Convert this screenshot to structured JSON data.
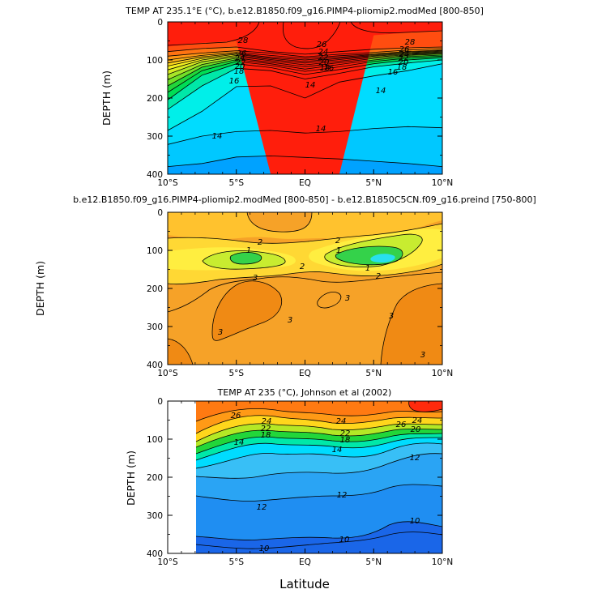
{
  "chart_data": [
    {
      "type": "heatmap",
      "title": "TEMP AT 235.1°E (°C), b.e12.B1850.f09_g16.PIMP4-pliomip2.modMed [800-850]",
      "xlabel": "",
      "ylabel": "DEPTH (m)",
      "xlim": [
        -10,
        10
      ],
      "ylim": [
        400,
        0
      ],
      "x_ticks": [
        "10°S",
        "5°S",
        "EQ",
        "5°N",
        "10°N"
      ],
      "y_ticks": [
        "0",
        "100",
        "200",
        "300",
        "400"
      ],
      "contour_labels": [
        "28",
        "26",
        "24",
        "22",
        "20",
        "18",
        "16",
        "14",
        "26",
        "24",
        "22",
        "20",
        "18",
        "16",
        "28",
        "26",
        "24",
        "22",
        "20",
        "18",
        "16",
        "14",
        "14",
        "14"
      ],
      "bands": [
        {
          "level": 12,
          "color": "#00a2ff",
          "depth": [
            400,
            400,
            400,
            400,
            400,
            400,
            400,
            400,
            400
          ]
        },
        {
          "level": 13,
          "color": "#00c8ff",
          "depth": [
            380,
            372,
            355,
            352,
            356,
            360,
            366,
            372,
            380
          ]
        },
        {
          "level": 14,
          "color": "#00dcff",
          "depth": [
            322,
            300,
            288,
            285,
            292,
            288,
            280,
            275,
            278
          ]
        },
        {
          "level": 15,
          "color": "#00efe9",
          "depth": [
            285,
            235,
            170,
            168,
            200,
            158,
            142,
            128,
            110
          ]
        },
        {
          "level": 16,
          "color": "#00e8a8",
          "depth": [
            230,
            168,
            122,
            128,
            150,
            135,
            118,
            108,
            100
          ]
        },
        {
          "level": 17,
          "color": "#00dd55",
          "depth": [
            205,
            140,
            110,
            120,
            138,
            125,
            110,
            100,
            94
          ]
        },
        {
          "level": 18,
          "color": "#22d63a",
          "depth": [
            185,
            128,
            104,
            114,
            130,
            118,
            104,
            95,
            90
          ]
        },
        {
          "level": 19,
          "color": "#72e028",
          "depth": [
            168,
            119,
            99,
            110,
            124,
            112,
            100,
            91,
            87
          ]
        },
        {
          "level": 20,
          "color": "#a8e628",
          "depth": [
            152,
            112,
            95,
            106,
            118,
            107,
            96,
            88,
            84
          ]
        },
        {
          "level": 21,
          "color": "#d8ec22",
          "depth": [
            138,
            105,
            91,
            102,
            113,
            103,
            93,
            86,
            82
          ]
        },
        {
          "level": 22,
          "color": "#f4f020",
          "depth": [
            126,
            100,
            88,
            99,
            108,
            99,
            90,
            84,
            80
          ]
        },
        {
          "level": 23,
          "color": "#ffd61c",
          "depth": [
            116,
            96,
            85,
            96,
            104,
            96,
            88,
            82,
            78
          ]
        },
        {
          "level": 24,
          "color": "#ffb318",
          "depth": [
            108,
            92,
            83,
            93,
            100,
            93,
            86,
            80,
            76
          ]
        },
        {
          "level": 25,
          "color": "#ff9614",
          "depth": [
            100,
            88,
            80,
            88,
            96,
            89,
            84,
            78,
            74
          ]
        },
        {
          "level": 26,
          "color": "#ff7312",
          "depth": [
            90,
            82,
            76,
            82,
            92,
            85,
            80,
            74,
            70
          ]
        },
        {
          "level": 27,
          "color": "#ff4d10",
          "depth": [
            78,
            70,
            66,
            78,
            85,
            78,
            72,
            68,
            66
          ]
        },
        {
          "level": 28,
          "color": "#ff1e0c",
          "depth": [
            65,
            55,
            50,
            400,
            400,
            400,
            35,
            28,
            22
          ]
        }
      ]
    },
    {
      "type": "heatmap",
      "title": "b.e12.B1850.f09_g16.PIMP4-pliomip2.modMed [800-850] - b.e12.B1850C5CN.f09_g16.preind [750-800]",
      "xlabel": "",
      "ylabel": "DEPTH (m)",
      "xlim": [
        -10,
        10
      ],
      "ylim": [
        400,
        0
      ],
      "x_ticks": [
        "10°S",
        "5°S",
        "EQ",
        "5°N",
        "10°N"
      ],
      "y_ticks": [
        "0",
        "100",
        "200",
        "300",
        "400"
      ],
      "contour_labels": [
        "2",
        "1",
        "2",
        "3",
        "2",
        "1",
        "1",
        "2",
        "3",
        "3",
        "3",
        "3",
        "3"
      ]
    },
    {
      "type": "heatmap",
      "title": "TEMP AT 235 (°C), Johnson et al (2002)",
      "xlabel": "Latitude",
      "ylabel": "DEPTH (m)",
      "xlim": [
        -10,
        10
      ],
      "ylim": [
        400,
        0
      ],
      "x_ticks": [
        "10°S",
        "5°S",
        "EQ",
        "5°N",
        "10°N"
      ],
      "y_ticks": [
        "0",
        "100",
        "200",
        "300",
        "400"
      ],
      "contour_labels": [
        "26",
        "24",
        "22",
        "18",
        "14",
        "24",
        "22",
        "18",
        "14",
        "26",
        "24",
        "20",
        "12",
        "12",
        "12",
        "10",
        "10",
        "10"
      ]
    }
  ]
}
